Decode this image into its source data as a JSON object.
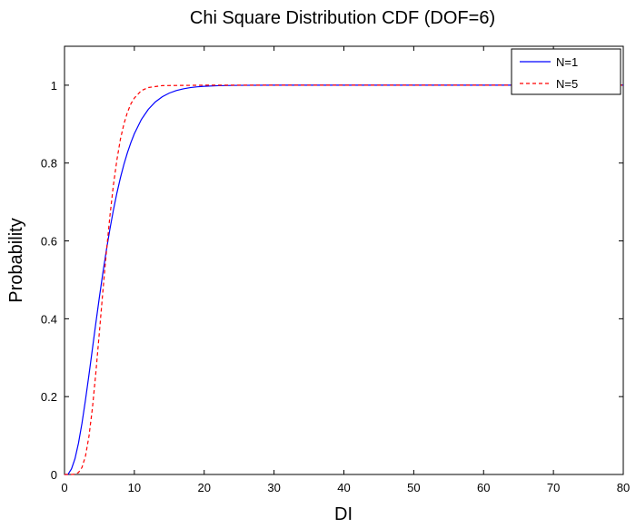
{
  "chart_data": {
    "type": "line",
    "title": "Chi Square Distribution CDF (DOF=6)",
    "xlabel": "DI",
    "ylabel": "Probability",
    "xlim": [
      0,
      80
    ],
    "ylim": [
      0,
      1.1
    ],
    "xticks": [
      0,
      10,
      20,
      30,
      40,
      50,
      60,
      70,
      80
    ],
    "yticks": [
      0,
      0.2,
      0.4,
      0.6,
      0.8,
      1
    ],
    "grid": false,
    "legend_position": "top-right",
    "series": [
      {
        "name": "N=1",
        "color": "#0000ff",
        "line_style": "solid",
        "x": [
          0,
          0.5,
          1,
          1.5,
          2,
          2.5,
          3,
          3.5,
          4,
          4.5,
          5,
          5.5,
          6,
          6.5,
          7,
          7.5,
          8,
          8.5,
          9,
          9.5,
          10,
          11,
          12,
          13,
          14,
          15,
          16,
          17,
          18,
          19,
          20,
          22,
          25,
          30,
          40,
          50,
          60,
          70,
          80
        ],
        "y": [
          0,
          0.0002,
          0.0144,
          0.0405,
          0.0803,
          0.1315,
          0.1912,
          0.2559,
          0.3233,
          0.3907,
          0.4562,
          0.5185,
          0.5768,
          0.6303,
          0.6792,
          0.7229,
          0.7619,
          0.7962,
          0.8264,
          0.8526,
          0.8753,
          0.9118,
          0.938,
          0.957,
          0.9704,
          0.9797,
          0.9862,
          0.9907,
          0.9938,
          0.9958,
          0.9972,
          0.9988,
          0.9997,
          1.0,
          1.0,
          1.0,
          1.0,
          1.0,
          1.0
        ]
      },
      {
        "name": "N=5",
        "color": "#ff0000",
        "line_style": "dashed",
        "x": [
          0,
          0.5,
          1,
          1.5,
          2,
          2.5,
          3,
          3.5,
          4,
          4.5,
          5,
          5.5,
          6,
          6.5,
          7,
          7.5,
          8,
          8.5,
          9,
          9.5,
          10,
          11,
          12,
          14,
          20,
          30,
          40,
          50,
          60,
          70,
          80
        ],
        "y": [
          0,
          0.0,
          0.0,
          0.0008,
          0.005,
          0.018,
          0.047,
          0.098,
          0.171,
          0.264,
          0.367,
          0.472,
          0.573,
          0.664,
          0.743,
          0.808,
          0.861,
          0.9,
          0.93,
          0.952,
          0.967,
          0.986,
          0.994,
          0.999,
          1.0,
          1.0,
          1.0,
          1.0,
          1.0,
          1.0,
          1.0
        ]
      }
    ]
  }
}
